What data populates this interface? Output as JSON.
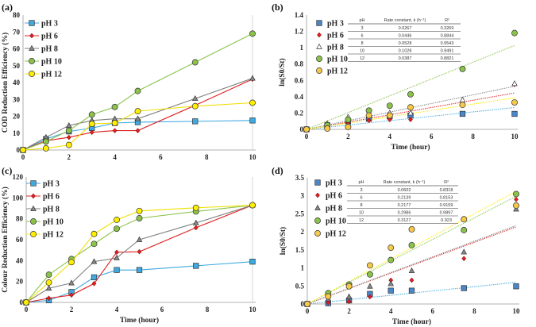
{
  "colors": {
    "pH 3": "#3fa9e0",
    "pH 6": "#e02020",
    "pH 8": "#808080",
    "pH 10": "#8bc34a",
    "pH 12": "#ffee00",
    "pH 12 kinetic": "#f7c948",
    "pH 3 kinetic": "#4a86c8"
  },
  "chart_data": [
    {
      "id": "a",
      "panel_label": "(a)",
      "type": "line",
      "xlabel": "Time (hour)",
      "ylabel": "COD Reduction Efficiency (%)",
      "xlim": [
        0,
        10
      ],
      "ylim": [
        0,
        80
      ],
      "xticks": [
        0,
        2,
        4,
        6,
        8,
        10
      ],
      "yticks": [
        0,
        10,
        20,
        30,
        40,
        50,
        60,
        70,
        80
      ],
      "x": [
        0,
        1,
        2,
        3,
        4,
        5,
        7.5,
        10
      ],
      "series": [
        {
          "name": "pH 3",
          "marker": "square",
          "values": [
            0,
            6.5,
            11,
            13,
            16,
            16.5,
            17,
            17.5
          ]
        },
        {
          "name": "pH 6",
          "marker": "diamond",
          "values": [
            0,
            5.5,
            7.5,
            10.5,
            11.5,
            11.5,
            26.5,
            42
          ]
        },
        {
          "name": "pH 8",
          "marker": "triangle",
          "values": [
            0,
            7.5,
            14.5,
            17.5,
            18.5,
            18.5,
            30.5,
            42.5
          ]
        },
        {
          "name": "pH 10",
          "marker": "circle",
          "values": [
            0,
            5,
            11.5,
            21,
            25.5,
            35,
            52,
            69
          ]
        },
        {
          "name": "pH 12",
          "marker": "circle",
          "values": [
            0,
            1,
            3,
            15.5,
            16,
            23,
            26,
            28
          ]
        }
      ]
    },
    {
      "id": "b",
      "panel_label": "(b)",
      "type": "scatter",
      "xlabel": "Time (hour)",
      "ylabel": "ln(S0/St)",
      "xlim": [
        0,
        10
      ],
      "ylim": [
        0,
        1.4
      ],
      "xticks": [
        0,
        2,
        4,
        6,
        8,
        10
      ],
      "yticks": [
        0,
        0.2,
        0.4,
        0.6,
        0.8,
        1,
        1.2,
        1.4
      ],
      "x": [
        0,
        1,
        2,
        3,
        4,
        5,
        7.5,
        10
      ],
      "series": [
        {
          "name": "pH 3",
          "marker": "square",
          "values": [
            0,
            0.05,
            0.1,
            0.13,
            0.16,
            0.17,
            0.19,
            0.19
          ]
        },
        {
          "name": "pH 6",
          "marker": "diamond",
          "values": [
            0,
            0.06,
            0.08,
            0.11,
            0.12,
            0.12,
            0.31,
            0.55
          ]
        },
        {
          "name": "pH 8",
          "marker": "triangle-open",
          "values": [
            0,
            0.07,
            0.15,
            0.19,
            0.2,
            0.2,
            0.36,
            0.56
          ]
        },
        {
          "name": "pH 10",
          "marker": "circle",
          "values": [
            0,
            0.05,
            0.12,
            0.23,
            0.29,
            0.43,
            0.74,
            1.18
          ]
        },
        {
          "name": "pH 12",
          "marker": "circle",
          "values": [
            0,
            0.01,
            0.03,
            0.17,
            0.17,
            0.27,
            0.3,
            0.33
          ]
        }
      ],
      "table": {
        "headers": [
          "pH",
          "Rate constant, k (h⁻¹)",
          "R²"
        ],
        "rows": [
          [
            "3",
            "0.0267",
            "0.3269"
          ],
          [
            "6",
            "0.0446",
            "0.8844"
          ],
          [
            "8",
            "0.0528",
            "0.9543"
          ],
          [
            "10",
            "0.1028",
            "0.9491"
          ],
          [
            "12",
            "0.0387",
            "0.8821"
          ]
        ]
      }
    },
    {
      "id": "c",
      "panel_label": "(c)",
      "type": "line",
      "xlabel": "Time (hour)",
      "ylabel": "Colour Reduction Efficiency (%)",
      "xlim": [
        0,
        10
      ],
      "ylim": [
        0,
        120
      ],
      "xticks": [
        0,
        2,
        4,
        6,
        8,
        10
      ],
      "yticks": [
        0,
        20,
        40,
        60,
        80,
        100,
        120
      ],
      "x": [
        0,
        1,
        2,
        3,
        4,
        5,
        7.5,
        10
      ],
      "series": [
        {
          "name": "pH 3",
          "marker": "square",
          "values": [
            0,
            2,
            10,
            24,
            31,
            31,
            35,
            39
          ]
        },
        {
          "name": "pH 6",
          "marker": "diamond",
          "values": [
            0,
            4,
            7,
            18,
            48,
            48.5,
            71.5,
            93
          ]
        },
        {
          "name": "pH 8",
          "marker": "triangle",
          "values": [
            0,
            13.5,
            18.5,
            39,
            42.5,
            60,
            76,
            93
          ]
        },
        {
          "name": "pH 10",
          "marker": "circle",
          "values": [
            0,
            26.5,
            41.5,
            56,
            70.5,
            80.5,
            87,
            93
          ]
        },
        {
          "name": "pH 12",
          "marker": "circle",
          "values": [
            0,
            19,
            38.5,
            65.5,
            79,
            87.5,
            90.5,
            93
          ]
        }
      ]
    },
    {
      "id": "d",
      "panel_label": "(d)",
      "type": "scatter",
      "xlabel": "Time (hour)",
      "ylabel": "ln(S0/St)",
      "xlim": [
        0,
        10
      ],
      "ylim": [
        0,
        3.5
      ],
      "xticks": [
        0,
        2,
        4,
        6,
        8,
        10
      ],
      "yticks": [
        0,
        0.5,
        1,
        1.5,
        2,
        2.5,
        3,
        3.5
      ],
      "x": [
        0,
        1,
        2,
        3,
        4,
        5,
        7.5,
        10
      ],
      "series": [
        {
          "name": "pH 3",
          "marker": "square",
          "values": [
            0,
            0.02,
            0.1,
            0.28,
            0.37,
            0.37,
            0.44,
            0.49
          ]
        },
        {
          "name": "pH 6",
          "marker": "diamond",
          "values": [
            0,
            0.04,
            0.07,
            0.2,
            0.66,
            0.66,
            1.26,
            2.9
          ]
        },
        {
          "name": "pH 8",
          "marker": "triangle",
          "values": [
            0,
            0.14,
            0.2,
            0.49,
            0.56,
            0.92,
            1.44,
            2.63
          ]
        },
        {
          "name": "pH 10",
          "marker": "circle",
          "values": [
            0,
            0.3,
            0.54,
            0.82,
            1.22,
            1.63,
            2.05,
            3.05
          ]
        },
        {
          "name": "pH 12",
          "marker": "circle",
          "values": [
            0,
            0.21,
            0.49,
            1.07,
            1.56,
            2.07,
            2.35,
            2.73
          ]
        }
      ],
      "table": {
        "headers": [
          "pH",
          "Rate constant, k (h⁻¹)",
          "R²"
        ],
        "rows": [
          [
            "3",
            "0.0602",
            "0.8318"
          ],
          [
            "6",
            "0.2139",
            "0.8153"
          ],
          [
            "8",
            "0.2177",
            "0.9159"
          ],
          [
            "10",
            "0.2986",
            "0.9897"
          ],
          [
            "12",
            "0.3127",
            "0.923"
          ]
        ]
      }
    }
  ]
}
